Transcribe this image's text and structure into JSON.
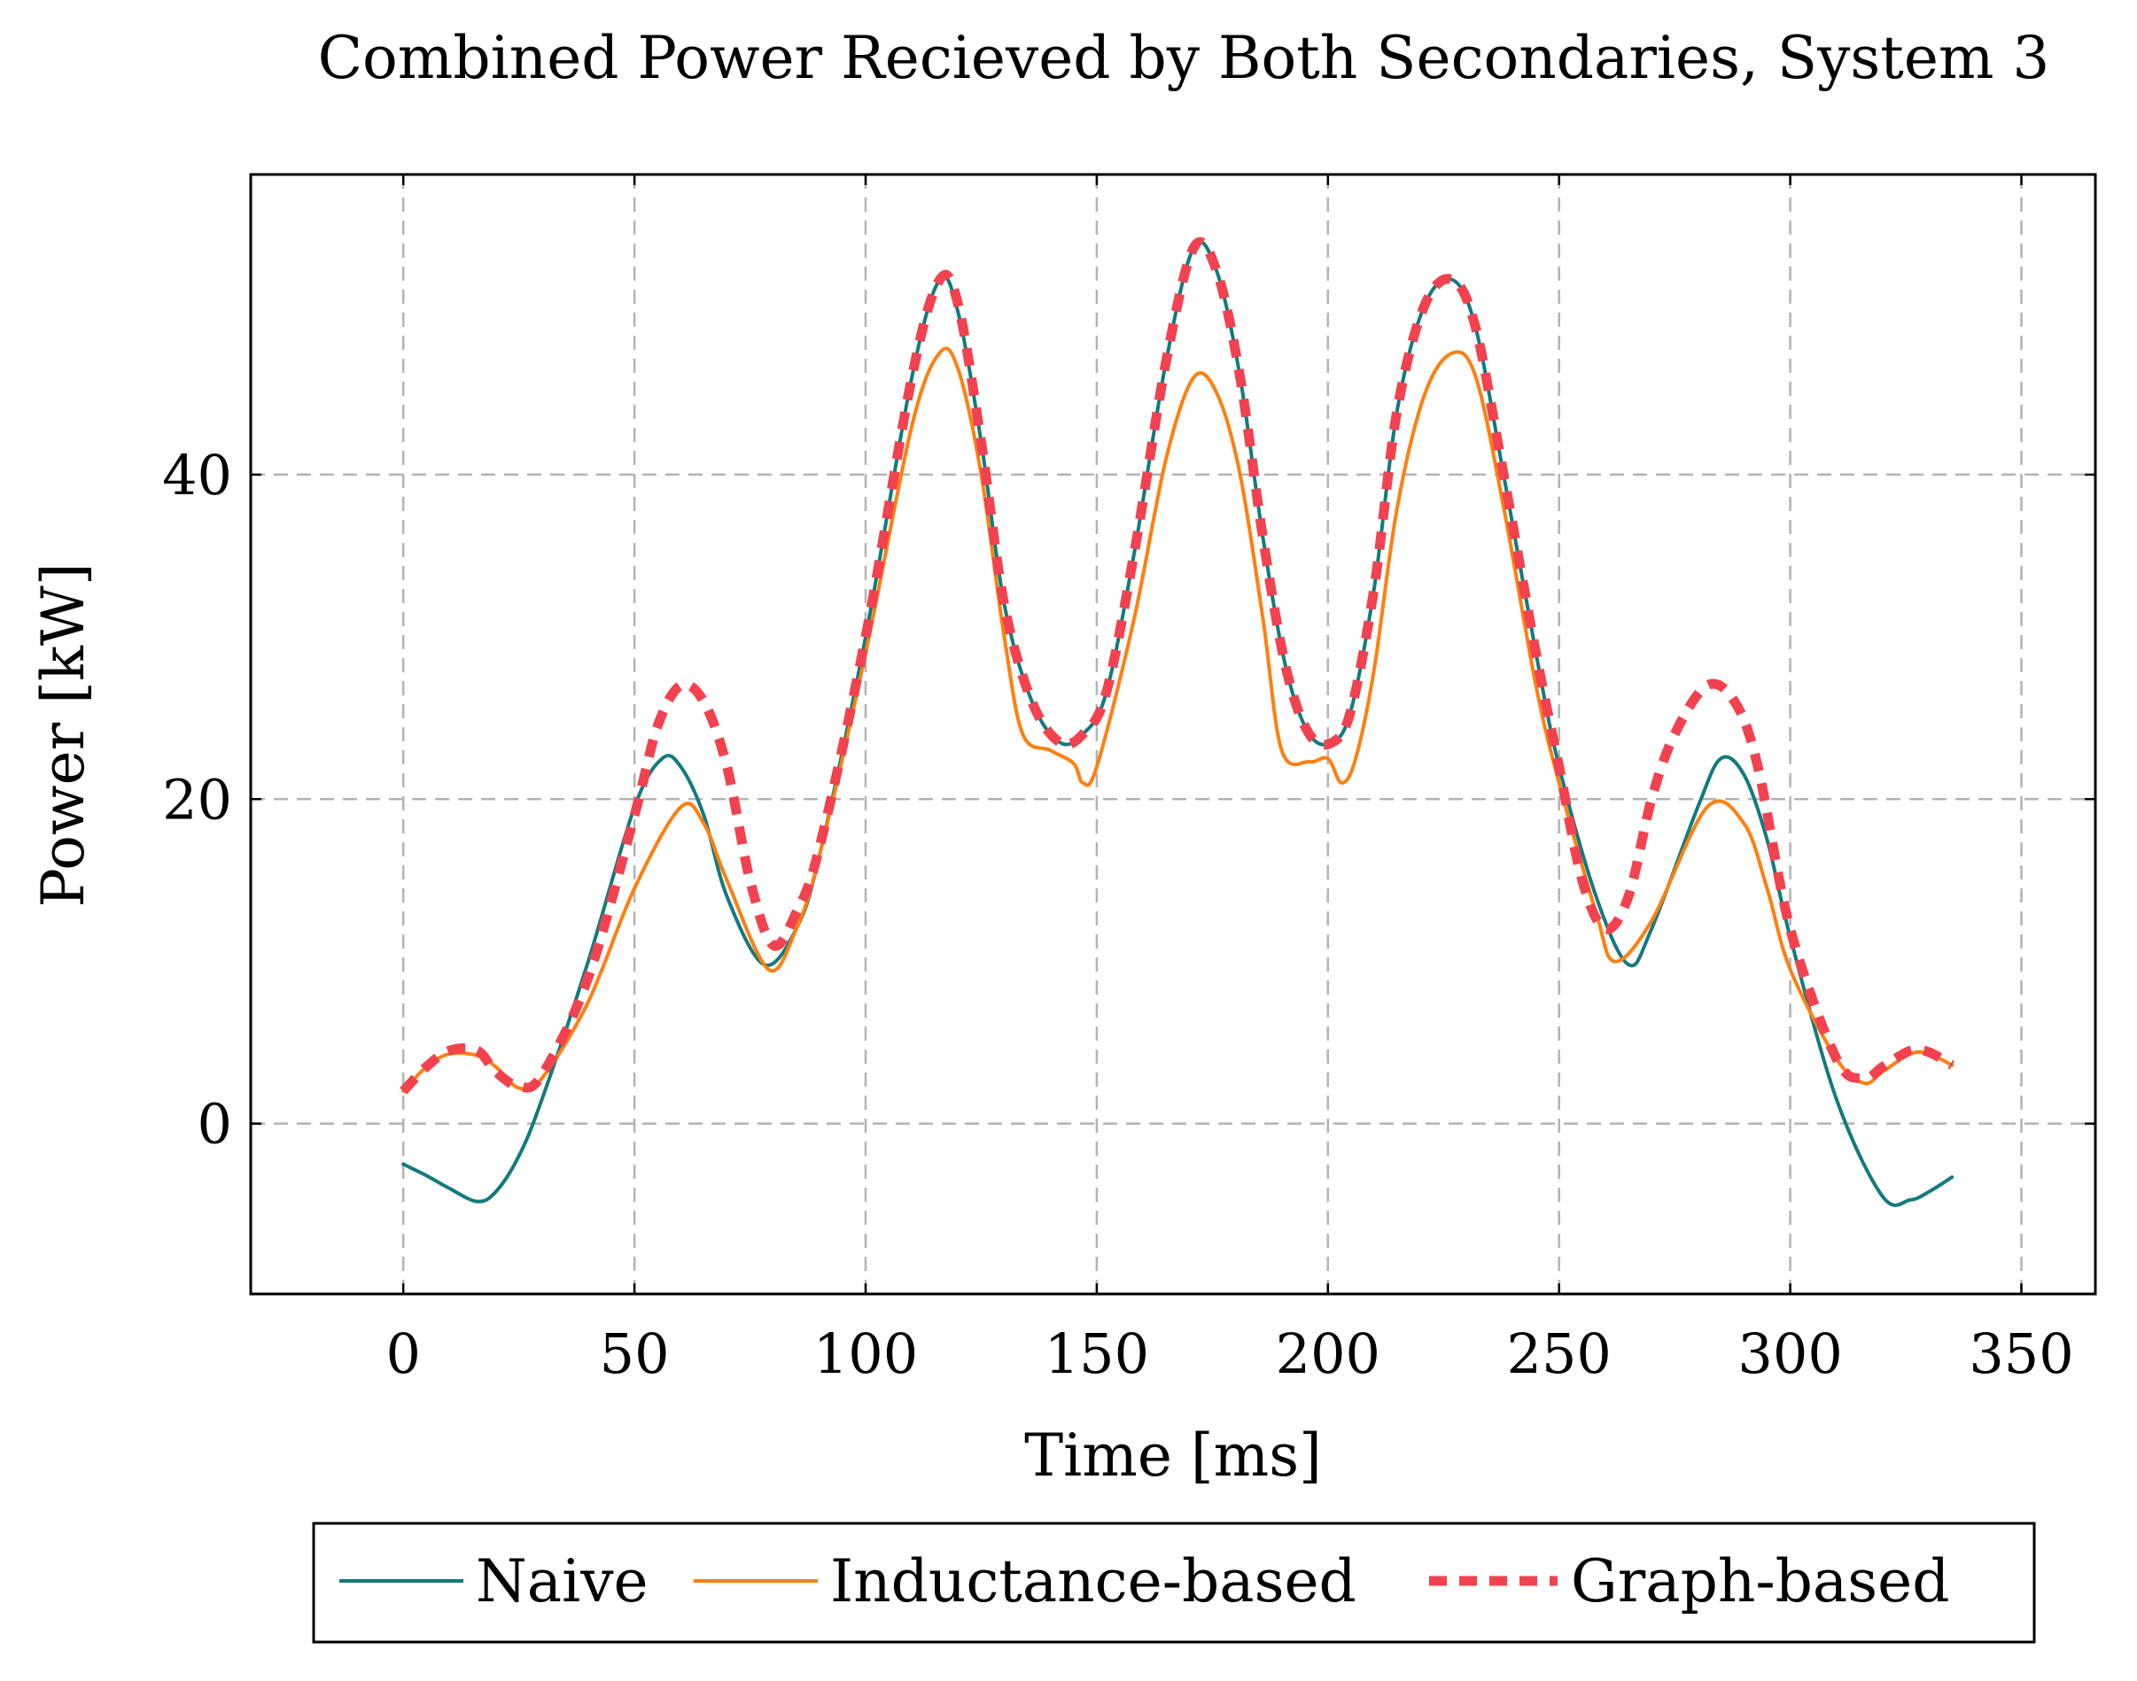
{
  "chart_data": {
    "type": "line",
    "title": "Combined Power Recieved by Both Secondaries, System 3",
    "xlabel": "Time [ms]",
    "ylabel": "Power [kW]",
    "xlim": [
      -33,
      366
    ],
    "ylim": [
      -10.5,
      58.5
    ],
    "xticks": [
      0,
      50,
      100,
      150,
      200,
      250,
      300,
      350
    ],
    "yticks": [
      0,
      20,
      40
    ],
    "grid": true,
    "legend_position": "bottom-outside",
    "series": [
      {
        "name": "Naive",
        "color": "#137a7f",
        "dash": "solid",
        "x": [
          0,
          5,
          10,
          16,
          20,
          25,
          30,
          40,
          50,
          56,
          60,
          65,
          70,
          78,
          85,
          90,
          100,
          110,
          116,
          120,
          125,
          130,
          136,
          142,
          147,
          152,
          158,
          165,
          171,
          176,
          181,
          186,
          191,
          196,
          201,
          205,
          210,
          215,
          221,
          227,
          232,
          238,
          245,
          250,
          258,
          265,
          270,
          280,
          285,
          290,
          295,
          300,
          310,
          320,
          326,
          330,
          335
        ],
        "y": [
          -2.5,
          -3.2,
          -4.0,
          -4.8,
          -4.2,
          -2.0,
          1.5,
          10.0,
          19.5,
          22.5,
          22.0,
          19.0,
          14.0,
          9.8,
          12.0,
          16.5,
          30.0,
          46.0,
          52.0,
          50.0,
          42.0,
          32.0,
          26.0,
          23.5,
          24.0,
          26.5,
          35.0,
          47.0,
          54.0,
          52.5,
          46.0,
          36.0,
          28.0,
          24.0,
          23.5,
          25.5,
          33.0,
          44.0,
          50.5,
          52.0,
          49.0,
          40.0,
          29.0,
          22.0,
          14.0,
          9.8,
          12.0,
          19.5,
          22.5,
          21.5,
          17.5,
          11.5,
          1.5,
          -4.5,
          -4.7,
          -4.2,
          -3.3
        ]
      },
      {
        "name": "Inductance-based",
        "color": "#ff7f0e",
        "dash": "solid",
        "x": [
          0,
          5,
          10,
          16,
          20,
          25,
          30,
          40,
          50,
          60,
          65,
          70,
          79,
          85,
          90,
          100,
          110,
          116,
          120,
          125,
          130,
          134,
          140,
          145,
          147,
          150,
          158,
          165,
          171,
          176,
          181,
          186,
          190,
          196,
          200,
          203,
          206,
          210,
          215,
          221,
          227,
          232,
          238,
          245,
          250,
          258,
          262,
          270,
          282,
          290,
          295,
          300,
          310,
          316,
          320,
          326,
          330,
          335
        ],
        "y": [
          2.0,
          3.5,
          4.3,
          4.2,
          3.5,
          2.2,
          2.8,
          7.5,
          14.5,
          19.5,
          18.5,
          15.0,
          9.5,
          12.0,
          16.5,
          29.0,
          43.0,
          47.5,
          46.5,
          40.0,
          30.0,
          24.0,
          23.0,
          22.2,
          21.0,
          22.0,
          31.0,
          41.0,
          46.0,
          45.0,
          40.0,
          31.0,
          23.0,
          22.3,
          22.5,
          21.0,
          22.5,
          28.0,
          38.0,
          45.0,
          47.5,
          46.0,
          38.0,
          27.0,
          21.0,
          13.0,
          10.0,
          12.5,
          19.5,
          18.5,
          14.5,
          9.5,
          4.0,
          2.5,
          3.2,
          4.3,
          4.3,
          3.6
        ]
      },
      {
        "name": "Graph-based",
        "color": "#f2424f",
        "dash": "dashed",
        "x": [
          0,
          5,
          10,
          16,
          20,
          25,
          30,
          40,
          50,
          55,
          60,
          65,
          70,
          75,
          80,
          85,
          90,
          100,
          110,
          116,
          120,
          125,
          130,
          136,
          142,
          147,
          152,
          158,
          165,
          171,
          176,
          181,
          186,
          191,
          196,
          201,
          205,
          210,
          215,
          221,
          227,
          232,
          238,
          245,
          250,
          255,
          260,
          265,
          270,
          275,
          282,
          288,
          293,
          300,
          310,
          316,
          320,
          326,
          330,
          335
        ],
        "y": [
          2.0,
          3.5,
          4.5,
          4.5,
          3.2,
          2.3,
          3.0,
          9.0,
          19.0,
          24.5,
          27.0,
          26.0,
          22.0,
          15.0,
          11.0,
          13.0,
          17.0,
          30.0,
          46.0,
          52.0,
          50.5,
          42.0,
          32.0,
          26.0,
          23.5,
          24.0,
          26.5,
          35.0,
          47.0,
          54.0,
          52.5,
          46.0,
          36.0,
          28.0,
          24.0,
          23.5,
          25.5,
          33.0,
          44.0,
          50.5,
          52.0,
          49.0,
          40.0,
          29.0,
          22.0,
          15.0,
          12.0,
          14.0,
          20.0,
          24.0,
          27.0,
          26.0,
          22.0,
          12.0,
          4.0,
          2.8,
          3.5,
          4.5,
          4.4,
          3.6
        ]
      }
    ]
  }
}
